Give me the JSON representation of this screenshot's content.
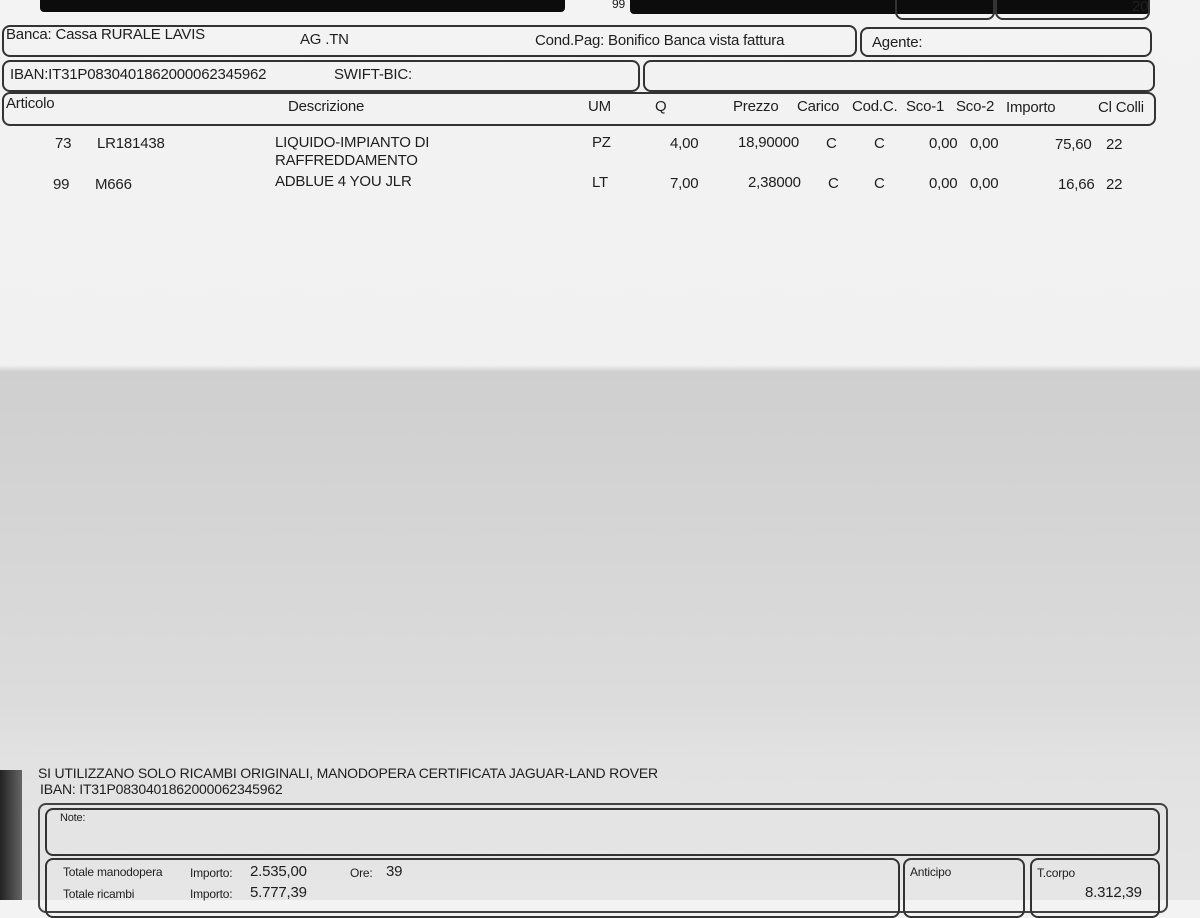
{
  "header": {
    "frag_left": "99",
    "frag_right": "20"
  },
  "bank": {
    "banca": "Banca: Cassa RURALE LAVIS",
    "ag": "AG .TN",
    "cond_pag": "Cond.Pag: Bonifico Banca vista fattura",
    "agente": "Agente:"
  },
  "iban_row": {
    "iban": "IBAN:IT31P0830401862000062345962",
    "swift": "SWIFT-BIC:"
  },
  "table": {
    "columns": [
      "Articolo",
      "Descrizione",
      "UM",
      "Q",
      "Prezzo",
      "Carico",
      "Cod.C.",
      "Sco-1",
      "Sco-2",
      "Importo",
      "Cl Colli"
    ],
    "rows": [
      {
        "riga": "73",
        "codice": "LR181438",
        "descrizione": "LIQUIDO-IMPIANTO DI",
        "descrizione2": "RAFFREDDAMENTO",
        "um": "PZ",
        "q": "4,00",
        "prezzo": "18,90000",
        "carico": "C",
        "codc": "C",
        "sco1": "0,00",
        "sco2": "0,00",
        "importo": "75,60",
        "cl": "22"
      },
      {
        "riga": "99",
        "codice": "M666",
        "descrizione": "ADBLUE 4 YOU JLR",
        "um": "LT",
        "q": "7,00",
        "prezzo": "2,38000",
        "carico": "C",
        "codc": "C",
        "sco1": "0,00",
        "sco2": "0,00",
        "importo": "16,66",
        "cl": "22"
      }
    ]
  },
  "footer": {
    "notice": "SI UTILIZZANO SOLO RICAMBI ORIGINALI, MANODOPERA CERTIFICATA JAGUAR-LAND ROVER",
    "iban": "IBAN: IT31P0830401862000062345962",
    "note_label": "Note:",
    "manodopera_label": "Totale manodopera",
    "manodopera_importo_label": "Importo:",
    "manodopera_importo": "2.535,00",
    "ore_label": "Ore:",
    "ore": "39",
    "ricambi_label": "Totale ricambi",
    "ricambi_importo_label": "Importo:",
    "ricambi_importo": "5.777,39",
    "anticipo_label": "Anticipo",
    "tcorpo_label": "T.corpo",
    "tcorpo": "8.312,39"
  }
}
